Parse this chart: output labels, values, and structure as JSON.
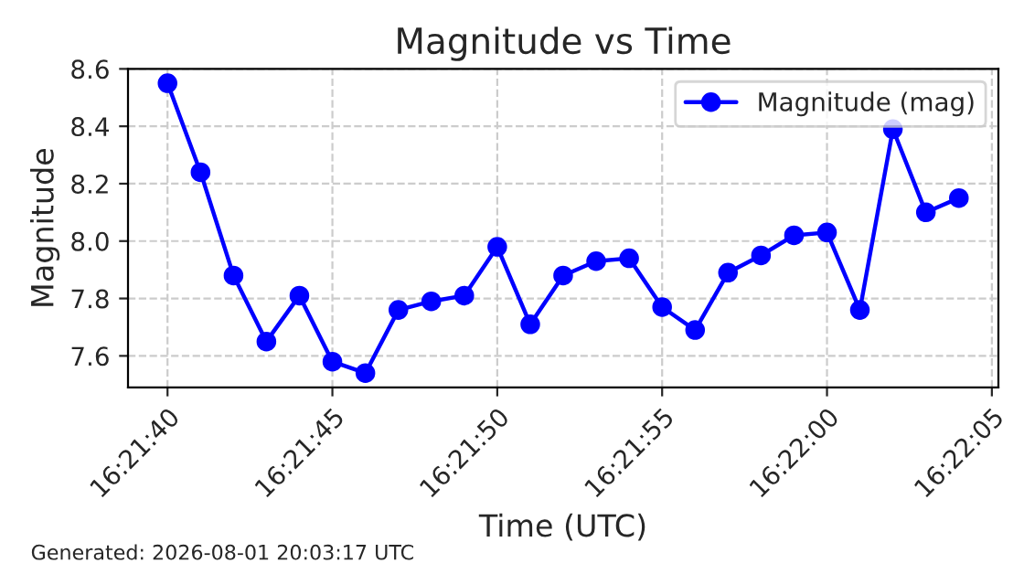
{
  "chart_data": {
    "type": "line",
    "title": "Magnitude vs Time",
    "xlabel": "Time (UTC)",
    "ylabel": "Magnitude",
    "x": [
      16.361111,
      16.361389,
      16.361667,
      16.361944,
      16.362222,
      16.3625,
      16.362778,
      16.363056,
      16.363333,
      16.363611,
      16.363889,
      16.364167,
      16.364444,
      16.364722,
      16.365,
      16.365278,
      16.365556,
      16.365833,
      16.366111,
      16.366389,
      16.366667,
      16.366944,
      16.367222,
      16.3675,
      16.367778
    ],
    "series": [
      {
        "name": "Magnitude (mag)",
        "color": "#0000ff",
        "values": [
          8.55,
          8.24,
          7.88,
          7.65,
          7.81,
          7.58,
          7.54,
          7.76,
          7.79,
          7.81,
          7.98,
          7.71,
          7.88,
          7.93,
          7.94,
          7.77,
          7.69,
          7.89,
          7.95,
          8.02,
          8.03,
          7.76,
          8.39,
          8.1,
          8.15
        ]
      }
    ],
    "xlim": [
      16.360778,
      16.368111
    ],
    "xticks": [
      {
        "value": 16.361111,
        "label": "16:21:40"
      },
      {
        "value": 16.3625,
        "label": "16:21:45"
      },
      {
        "value": 16.363889,
        "label": "16:21:50"
      },
      {
        "value": 16.365278,
        "label": "16:21:55"
      },
      {
        "value": 16.366667,
        "label": "16:22:00"
      },
      {
        "value": 16.368056,
        "label": "16:22:05"
      }
    ],
    "ylim": [
      7.49,
      8.6
    ],
    "yticks": [
      7.6,
      7.8,
      {
        "value": 8,
        "label": "8.0"
      },
      8.2,
      8.4,
      8.6
    ],
    "grid": true,
    "legend": "top right",
    "marker": "circle",
    "line_style": "solid",
    "annotations": [
      "Generated: 2026-08-01 20:03:17 UTC"
    ]
  }
}
